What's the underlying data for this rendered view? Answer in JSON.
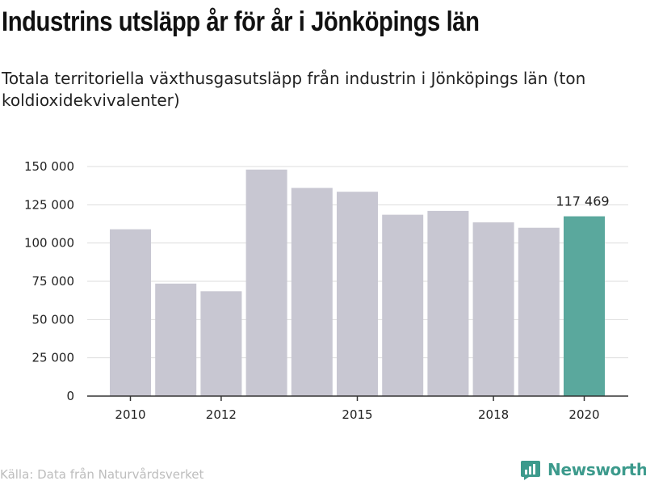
{
  "header": {
    "title": "Industrins utsläpp år för år i Jönköpings län",
    "subtitle": "Totala territoriella växthusgasutsläpp från industrin i Jönköpings län (ton koldioxidekvivalenter)"
  },
  "footer": {
    "source": "Källa: Data från Naturvårdsverket",
    "brand": "Newsworthy",
    "brand_icon": "bar-chart-icon"
  },
  "colors": {
    "bar": "#c8c7d2",
    "highlight": "#5aa89d",
    "grid": "#dddddd",
    "axis": "#333333",
    "brand": "#3c9a8c"
  },
  "chart_data": {
    "type": "bar",
    "title": "Industrins utsläpp år för år i Jönköpings län",
    "x": [
      2010,
      2011,
      2012,
      2013,
      2014,
      2015,
      2016,
      2017,
      2018,
      2019,
      2020
    ],
    "values": [
      109000,
      73500,
      68500,
      148000,
      136000,
      133500,
      118500,
      121000,
      113500,
      110000,
      117469
    ],
    "highlight_index": 10,
    "data_labels": [
      {
        "index": 10,
        "text": "117 469"
      }
    ],
    "x_ticks": [
      2010,
      2012,
      2015,
      2018,
      2020
    ],
    "x_tick_labels": [
      "2010",
      "2012",
      "2015",
      "2018",
      "2020"
    ],
    "y_ticks": [
      0,
      25000,
      50000,
      75000,
      100000,
      125000,
      150000
    ],
    "y_tick_labels": [
      "0",
      "25 000",
      "50 000",
      "75 000",
      "100 000",
      "125 000",
      "150 000"
    ],
    "ylim": [
      0,
      150000
    ],
    "grid": true,
    "legend": "none",
    "xlabel": "",
    "ylabel": ""
  }
}
